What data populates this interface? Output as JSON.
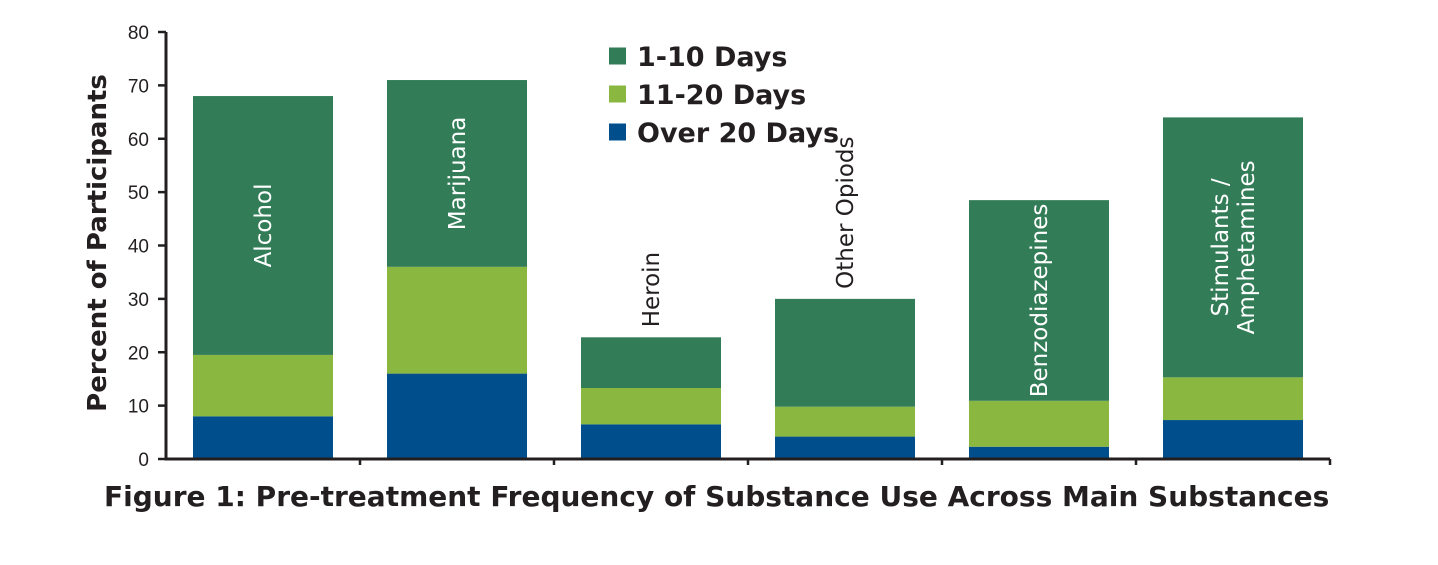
{
  "chart_data": {
    "type": "bar",
    "stacked": true,
    "title": "Figure 1: Pre-treatment Frequency of Substance Use Across Main Substances",
    "ylabel": "Percent of Participants",
    "xlabel": "",
    "ylim": [
      0,
      80
    ],
    "yticks": [
      0,
      10,
      20,
      30,
      40,
      50,
      60,
      70,
      80
    ],
    "grid": false,
    "legend_position": "top-center",
    "categories": [
      "Alcohol",
      "Marijuana",
      "Heroin",
      "Other Opiods",
      "Benzodiazepines",
      "Stimulants / Amphetamines"
    ],
    "category_label_lines": [
      [
        "Alcohol"
      ],
      [
        "Marijuana"
      ],
      [
        "Heroin"
      ],
      [
        "Other Opiods"
      ],
      [
        "Benzodiazepines"
      ],
      [
        "Stimulants /",
        "Amphetamines"
      ]
    ],
    "series": [
      {
        "name": "Over 20 Days",
        "color": "#004f8c",
        "values": [
          8,
          16,
          6.5,
          4.2,
          2.3,
          7.3
        ]
      },
      {
        "name": "11-20 Days",
        "color": "#8ab73f",
        "values": [
          11.5,
          20,
          6.8,
          5.6,
          8.6,
          8
        ]
      },
      {
        "name": "1-10 Days",
        "color": "#327d57",
        "values": [
          48.5,
          35,
          9.5,
          20.2,
          37.6,
          48.7
        ]
      }
    ],
    "legend_order": [
      "1-10 Days",
      "11-20 Days",
      "Over 20 Days"
    ]
  }
}
